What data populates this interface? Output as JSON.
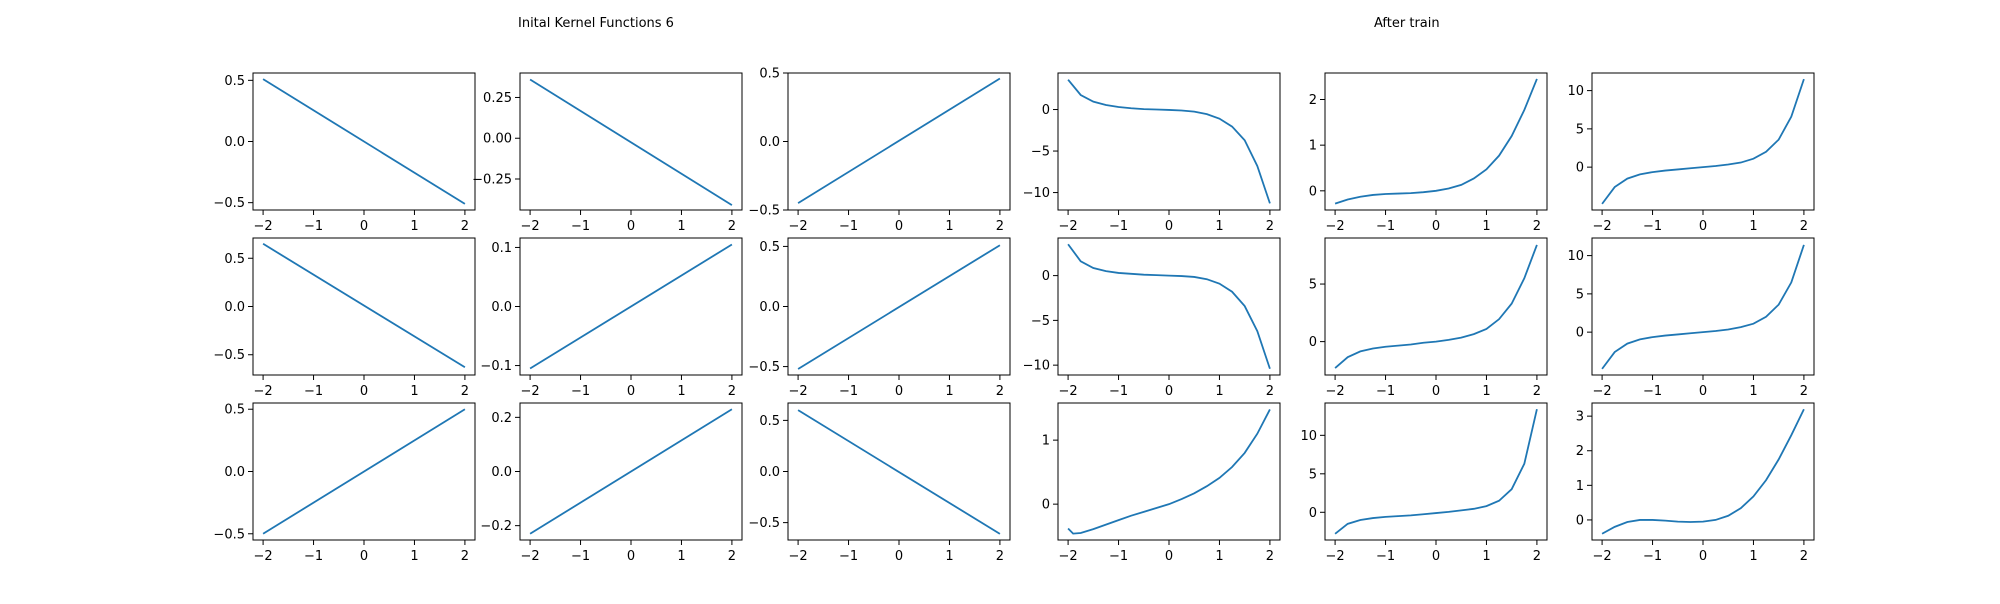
{
  "titles": {
    "left": "Inital Kernel Functions 6",
    "right": "After train"
  },
  "colors": {
    "line": "#1f77b4",
    "axes": "#000000",
    "background": "#ffffff"
  },
  "chart_data": [
    {
      "type": "line",
      "group": "initial",
      "row": 0,
      "col": 0,
      "x": [
        -2,
        2
      ],
      "series": [
        {
          "values": [
            0.51,
            -0.51
          ]
        }
      ],
      "xlim": [
        -2.2,
        2.2
      ],
      "ylim": [
        -0.56,
        0.56
      ],
      "yticks": [
        -0.5,
        0.0,
        0.5
      ],
      "ytick_labels": [
        "−0.5",
        "0.0",
        "0.5"
      ],
      "xticks": [
        -2,
        -1,
        0,
        1,
        2
      ],
      "xtick_labels": [
        "−2",
        "−1",
        "0",
        "1",
        "2"
      ]
    },
    {
      "type": "line",
      "group": "initial",
      "row": 0,
      "col": 1,
      "x": [
        -2,
        2
      ],
      "series": [
        {
          "values": [
            0.36,
            -0.41
          ]
        }
      ],
      "xlim": [
        -2.2,
        2.2
      ],
      "ylim": [
        -0.44,
        0.4
      ],
      "yticks": [
        -0.25,
        0.0,
        0.25
      ],
      "ytick_labels": [
        "−0.25",
        "0.00",
        "0.25"
      ],
      "xticks": [
        -2,
        -1,
        0,
        1,
        2
      ],
      "xtick_labels": [
        "−2",
        "−1",
        "0",
        "1",
        "2"
      ]
    },
    {
      "type": "line",
      "group": "initial",
      "row": 0,
      "col": 2,
      "x": [
        -2,
        2
      ],
      "series": [
        {
          "values": [
            -0.45,
            0.46
          ]
        }
      ],
      "xlim": [
        -2.2,
        2.2
      ],
      "ylim": [
        -0.5,
        0.5
      ],
      "yticks": [
        -0.5,
        0.0,
        0.5
      ],
      "ytick_labels": [
        "−0.5",
        "0.0",
        "0.5"
      ],
      "xticks": [
        -2,
        -1,
        0,
        1,
        2
      ],
      "xtick_labels": [
        "−2",
        "−1",
        "0",
        "1",
        "2"
      ]
    },
    {
      "type": "line",
      "group": "initial",
      "row": 1,
      "col": 0,
      "x": [
        -2,
        2
      ],
      "series": [
        {
          "values": [
            0.65,
            -0.63
          ]
        }
      ],
      "xlim": [
        -2.2,
        2.2
      ],
      "ylim": [
        -0.71,
        0.71
      ],
      "yticks": [
        -0.5,
        0.0,
        0.5
      ],
      "ytick_labels": [
        "−0.5",
        "0.0",
        "0.5"
      ],
      "xticks": [
        -2,
        -1,
        0,
        1,
        2
      ],
      "xtick_labels": [
        "−2",
        "−1",
        "0",
        "1",
        "2"
      ]
    },
    {
      "type": "line",
      "group": "initial",
      "row": 1,
      "col": 1,
      "x": [
        -2,
        2
      ],
      "series": [
        {
          "values": [
            -0.105,
            0.105
          ]
        }
      ],
      "xlim": [
        -2.2,
        2.2
      ],
      "ylim": [
        -0.116,
        0.116
      ],
      "yticks": [
        -0.1,
        0.0,
        0.1
      ],
      "ytick_labels": [
        "−0.1",
        "0.0",
        "0.1"
      ],
      "xticks": [
        -2,
        -1,
        0,
        1,
        2
      ],
      "xtick_labels": [
        "−2",
        "−1",
        "0",
        "1",
        "2"
      ]
    },
    {
      "type": "line",
      "group": "initial",
      "row": 1,
      "col": 2,
      "x": [
        -2,
        2
      ],
      "series": [
        {
          "values": [
            -0.52,
            0.51
          ]
        }
      ],
      "xlim": [
        -2.2,
        2.2
      ],
      "ylim": [
        -0.57,
        0.57
      ],
      "yticks": [
        -0.5,
        0.0,
        0.5
      ],
      "ytick_labels": [
        "−0.5",
        "0.0",
        "0.5"
      ],
      "xticks": [
        -2,
        -1,
        0,
        1,
        2
      ],
      "xtick_labels": [
        "−2",
        "−1",
        "0",
        "1",
        "2"
      ]
    },
    {
      "type": "line",
      "group": "initial",
      "row": 2,
      "col": 0,
      "x": [
        -2,
        2
      ],
      "series": [
        {
          "values": [
            -0.5,
            0.5
          ]
        }
      ],
      "xlim": [
        -2.2,
        2.2
      ],
      "ylim": [
        -0.55,
        0.55
      ],
      "yticks": [
        -0.5,
        0.0,
        0.5
      ],
      "ytick_labels": [
        "−0.5",
        "0.0",
        "0.5"
      ],
      "xticks": [
        -2,
        -1,
        0,
        1,
        2
      ],
      "xtick_labels": [
        "−2",
        "−1",
        "0",
        "1",
        "2"
      ]
    },
    {
      "type": "line",
      "group": "initial",
      "row": 2,
      "col": 1,
      "x": [
        -2,
        2
      ],
      "series": [
        {
          "values": [
            -0.23,
            0.23
          ]
        }
      ],
      "xlim": [
        -2.2,
        2.2
      ],
      "ylim": [
        -0.253,
        0.253
      ],
      "yticks": [
        -0.2,
        0.0,
        0.2
      ],
      "ytick_labels": [
        "−0.2",
        "0.0",
        "0.2"
      ],
      "xticks": [
        -2,
        -1,
        0,
        1,
        2
      ],
      "xtick_labels": [
        "−2",
        "−1",
        "0",
        "1",
        "2"
      ]
    },
    {
      "type": "line",
      "group": "initial",
      "row": 2,
      "col": 2,
      "x": [
        -2,
        2
      ],
      "series": [
        {
          "values": [
            0.6,
            -0.61
          ]
        }
      ],
      "xlim": [
        -2.2,
        2.2
      ],
      "ylim": [
        -0.67,
        0.67
      ],
      "yticks": [
        -0.5,
        0.0,
        0.5
      ],
      "ytick_labels": [
        "−0.5",
        "0.0",
        "0.5"
      ],
      "xticks": [
        -2,
        -1,
        0,
        1,
        2
      ],
      "xtick_labels": [
        "−2",
        "−1",
        "0",
        "1",
        "2"
      ]
    },
    {
      "type": "line",
      "group": "trained",
      "row": 0,
      "col": 0,
      "x": [
        -2.0,
        -1.75,
        -1.5,
        -1.25,
        -1.0,
        -0.75,
        -0.5,
        -0.25,
        0.0,
        0.25,
        0.5,
        0.75,
        1.0,
        1.25,
        1.5,
        1.75,
        2.0
      ],
      "series": [
        {
          "values": [
            3.6,
            1.75,
            0.95,
            0.55,
            0.3,
            0.15,
            0.05,
            0.0,
            -0.05,
            -0.12,
            -0.25,
            -0.55,
            -1.1,
            -2.05,
            -3.7,
            -6.8,
            -11.3
          ]
        }
      ],
      "xlim": [
        -2.2,
        2.2
      ],
      "ylim": [
        -12.1,
        4.4
      ],
      "yticks": [
        -10,
        -5,
        0
      ],
      "ytick_labels": [
        "−10",
        "−5",
        "0"
      ],
      "xticks": [
        -2,
        -1,
        0,
        1,
        2
      ],
      "xtick_labels": [
        "−2",
        "−1",
        "0",
        "1",
        "2"
      ]
    },
    {
      "type": "line",
      "group": "trained",
      "row": 0,
      "col": 1,
      "x": [
        -2.0,
        -1.75,
        -1.5,
        -1.25,
        -1.0,
        -0.75,
        -0.5,
        -0.25,
        0.0,
        0.25,
        0.5,
        0.75,
        1.0,
        1.25,
        1.5,
        1.75,
        2.0
      ],
      "series": [
        {
          "values": [
            -0.28,
            -0.19,
            -0.13,
            -0.09,
            -0.07,
            -0.06,
            -0.05,
            -0.03,
            0.0,
            0.05,
            0.13,
            0.27,
            0.47,
            0.77,
            1.2,
            1.77,
            2.45
          ]
        }
      ],
      "xlim": [
        -2.2,
        2.2
      ],
      "ylim": [
        -0.42,
        2.58
      ],
      "yticks": [
        0,
        1,
        2
      ],
      "ytick_labels": [
        "0",
        "1",
        "2"
      ],
      "xticks": [
        -2,
        -1,
        0,
        1,
        2
      ],
      "xtick_labels": [
        "−2",
        "−1",
        "0",
        "1",
        "2"
      ]
    },
    {
      "type": "line",
      "group": "trained",
      "row": 0,
      "col": 2,
      "x": [
        -2.0,
        -1.75,
        -1.5,
        -1.25,
        -1.0,
        -0.75,
        -0.5,
        -0.25,
        0.0,
        0.25,
        0.5,
        0.75,
        1.0,
        1.25,
        1.5,
        1.75,
        2.0
      ],
      "series": [
        {
          "values": [
            -4.8,
            -2.6,
            -1.5,
            -0.95,
            -0.65,
            -0.45,
            -0.3,
            -0.15,
            0.0,
            0.15,
            0.35,
            0.6,
            1.1,
            2.0,
            3.6,
            6.6,
            11.5
          ]
        }
      ],
      "xlim": [
        -2.2,
        2.2
      ],
      "ylim": [
        -5.6,
        12.3
      ],
      "yticks": [
        0,
        5,
        10
      ],
      "ytick_labels": [
        "0",
        "5",
        "10"
      ],
      "xticks": [
        -2,
        -1,
        0,
        1,
        2
      ],
      "xtick_labels": [
        "−2",
        "−1",
        "0",
        "1",
        "2"
      ]
    },
    {
      "type": "line",
      "group": "trained",
      "row": 1,
      "col": 0,
      "x": [
        -2.0,
        -1.75,
        -1.5,
        -1.25,
        -1.0,
        -0.75,
        -0.5,
        -0.25,
        0.0,
        0.25,
        0.5,
        0.75,
        1.0,
        1.25,
        1.5,
        1.75,
        2.0
      ],
      "series": [
        {
          "values": [
            3.5,
            1.6,
            0.85,
            0.5,
            0.3,
            0.2,
            0.1,
            0.05,
            0.0,
            -0.05,
            -0.15,
            -0.4,
            -0.9,
            -1.8,
            -3.4,
            -6.2,
            -10.4
          ]
        }
      ],
      "xlim": [
        -2.2,
        2.2
      ],
      "ylim": [
        -11.1,
        4.2
      ],
      "yticks": [
        -10,
        -5,
        0
      ],
      "ytick_labels": [
        "−10",
        "−5",
        "0"
      ],
      "xticks": [
        -2,
        -1,
        0,
        1,
        2
      ],
      "xtick_labels": [
        "−2",
        "−1",
        "0",
        "1",
        "2"
      ]
    },
    {
      "type": "line",
      "group": "trained",
      "row": 1,
      "col": 1,
      "x": [
        -2.0,
        -1.75,
        -1.5,
        -1.25,
        -1.0,
        -0.75,
        -0.5,
        -0.25,
        0.0,
        0.25,
        0.5,
        0.75,
        1.0,
        1.25,
        1.5,
        1.75,
        2.0
      ],
      "series": [
        {
          "values": [
            -2.3,
            -1.35,
            -0.85,
            -0.6,
            -0.45,
            -0.35,
            -0.25,
            -0.1,
            0.0,
            0.15,
            0.35,
            0.65,
            1.1,
            1.95,
            3.3,
            5.5,
            8.4
          ]
        }
      ],
      "xlim": [
        -2.2,
        2.2
      ],
      "ylim": [
        -2.9,
        9.0
      ],
      "yticks": [
        0,
        5
      ],
      "ytick_labels": [
        "0",
        "5"
      ],
      "xticks": [
        -2,
        -1,
        0,
        1,
        2
      ],
      "xtick_labels": [
        "−2",
        "−1",
        "0",
        "1",
        "2"
      ]
    },
    {
      "type": "line",
      "group": "trained",
      "row": 1,
      "col": 2,
      "x": [
        -2.0,
        -1.75,
        -1.5,
        -1.25,
        -1.0,
        -0.75,
        -0.5,
        -0.25,
        0.0,
        0.25,
        0.5,
        0.75,
        1.0,
        1.25,
        1.5,
        1.75,
        2.0
      ],
      "series": [
        {
          "values": [
            -4.8,
            -2.6,
            -1.5,
            -0.95,
            -0.65,
            -0.45,
            -0.3,
            -0.15,
            0.0,
            0.15,
            0.35,
            0.65,
            1.1,
            2.0,
            3.6,
            6.5,
            11.4
          ]
        }
      ],
      "xlim": [
        -2.2,
        2.2
      ],
      "ylim": [
        -5.6,
        12.3
      ],
      "yticks": [
        0,
        5,
        10
      ],
      "ytick_labels": [
        "0",
        "5",
        "10"
      ],
      "xticks": [
        -2,
        -1,
        0,
        1,
        2
      ],
      "xtick_labels": [
        "−2",
        "−1",
        "0",
        "1",
        "2"
      ]
    },
    {
      "type": "line",
      "group": "trained",
      "row": 2,
      "col": 0,
      "x": [
        -2.0,
        -1.9,
        -1.75,
        -1.5,
        -1.25,
        -1.0,
        -0.75,
        -0.5,
        -0.25,
        0.0,
        0.25,
        0.5,
        0.75,
        1.0,
        1.25,
        1.5,
        1.75,
        2.0
      ],
      "series": [
        {
          "values": [
            -0.38,
            -0.46,
            -0.45,
            -0.39,
            -0.32,
            -0.25,
            -0.18,
            -0.12,
            -0.06,
            0.0,
            0.08,
            0.17,
            0.28,
            0.41,
            0.58,
            0.8,
            1.1,
            1.48
          ]
        }
      ],
      "xlim": [
        -2.2,
        2.2
      ],
      "ylim": [
        -0.56,
        1.58
      ],
      "yticks": [
        0,
        1
      ],
      "ytick_labels": [
        "0",
        "1"
      ],
      "xticks": [
        -2,
        -1,
        0,
        1,
        2
      ],
      "xtick_labels": [
        "−2",
        "−1",
        "0",
        "1",
        "2"
      ]
    },
    {
      "type": "line",
      "group": "trained",
      "row": 2,
      "col": 1,
      "x": [
        -2.0,
        -1.75,
        -1.5,
        -1.25,
        -1.0,
        -0.75,
        -0.5,
        -0.25,
        0.0,
        0.25,
        0.5,
        0.75,
        1.0,
        1.25,
        1.5,
        1.75,
        2.0
      ],
      "series": [
        {
          "values": [
            -2.8,
            -1.5,
            -1.0,
            -0.75,
            -0.6,
            -0.5,
            -0.4,
            -0.25,
            -0.1,
            0.05,
            0.25,
            0.45,
            0.8,
            1.5,
            3.0,
            6.3,
            13.4
          ]
        }
      ],
      "xlim": [
        -2.2,
        2.2
      ],
      "ylim": [
        -3.6,
        14.2
      ],
      "yticks": [
        0,
        5,
        10
      ],
      "ytick_labels": [
        "0",
        "5",
        "10"
      ],
      "xticks": [
        -2,
        -1,
        0,
        1,
        2
      ],
      "xtick_labels": [
        "−2",
        "−1",
        "0",
        "1",
        "2"
      ]
    },
    {
      "type": "line",
      "group": "trained",
      "row": 2,
      "col": 2,
      "x": [
        -2.0,
        -1.75,
        -1.5,
        -1.25,
        -1.0,
        -0.75,
        -0.5,
        -0.25,
        0.0,
        0.25,
        0.5,
        0.75,
        1.0,
        1.25,
        1.5,
        1.75,
        2.0
      ],
      "series": [
        {
          "values": [
            -0.4,
            -0.2,
            -0.06,
            0.0,
            0.0,
            -0.02,
            -0.05,
            -0.06,
            -0.05,
            0.0,
            0.12,
            0.34,
            0.68,
            1.15,
            1.75,
            2.45,
            3.2
          ]
        }
      ],
      "xlim": [
        -2.2,
        2.2
      ],
      "ylim": [
        -0.58,
        3.38
      ],
      "yticks": [
        0,
        1,
        2,
        3
      ],
      "ytick_labels": [
        "0",
        "1",
        "2",
        "3"
      ],
      "xticks": [
        -2,
        -1,
        0,
        1,
        2
      ],
      "xtick_labels": [
        "−2",
        "−1",
        "0",
        "1",
        "2"
      ]
    }
  ]
}
